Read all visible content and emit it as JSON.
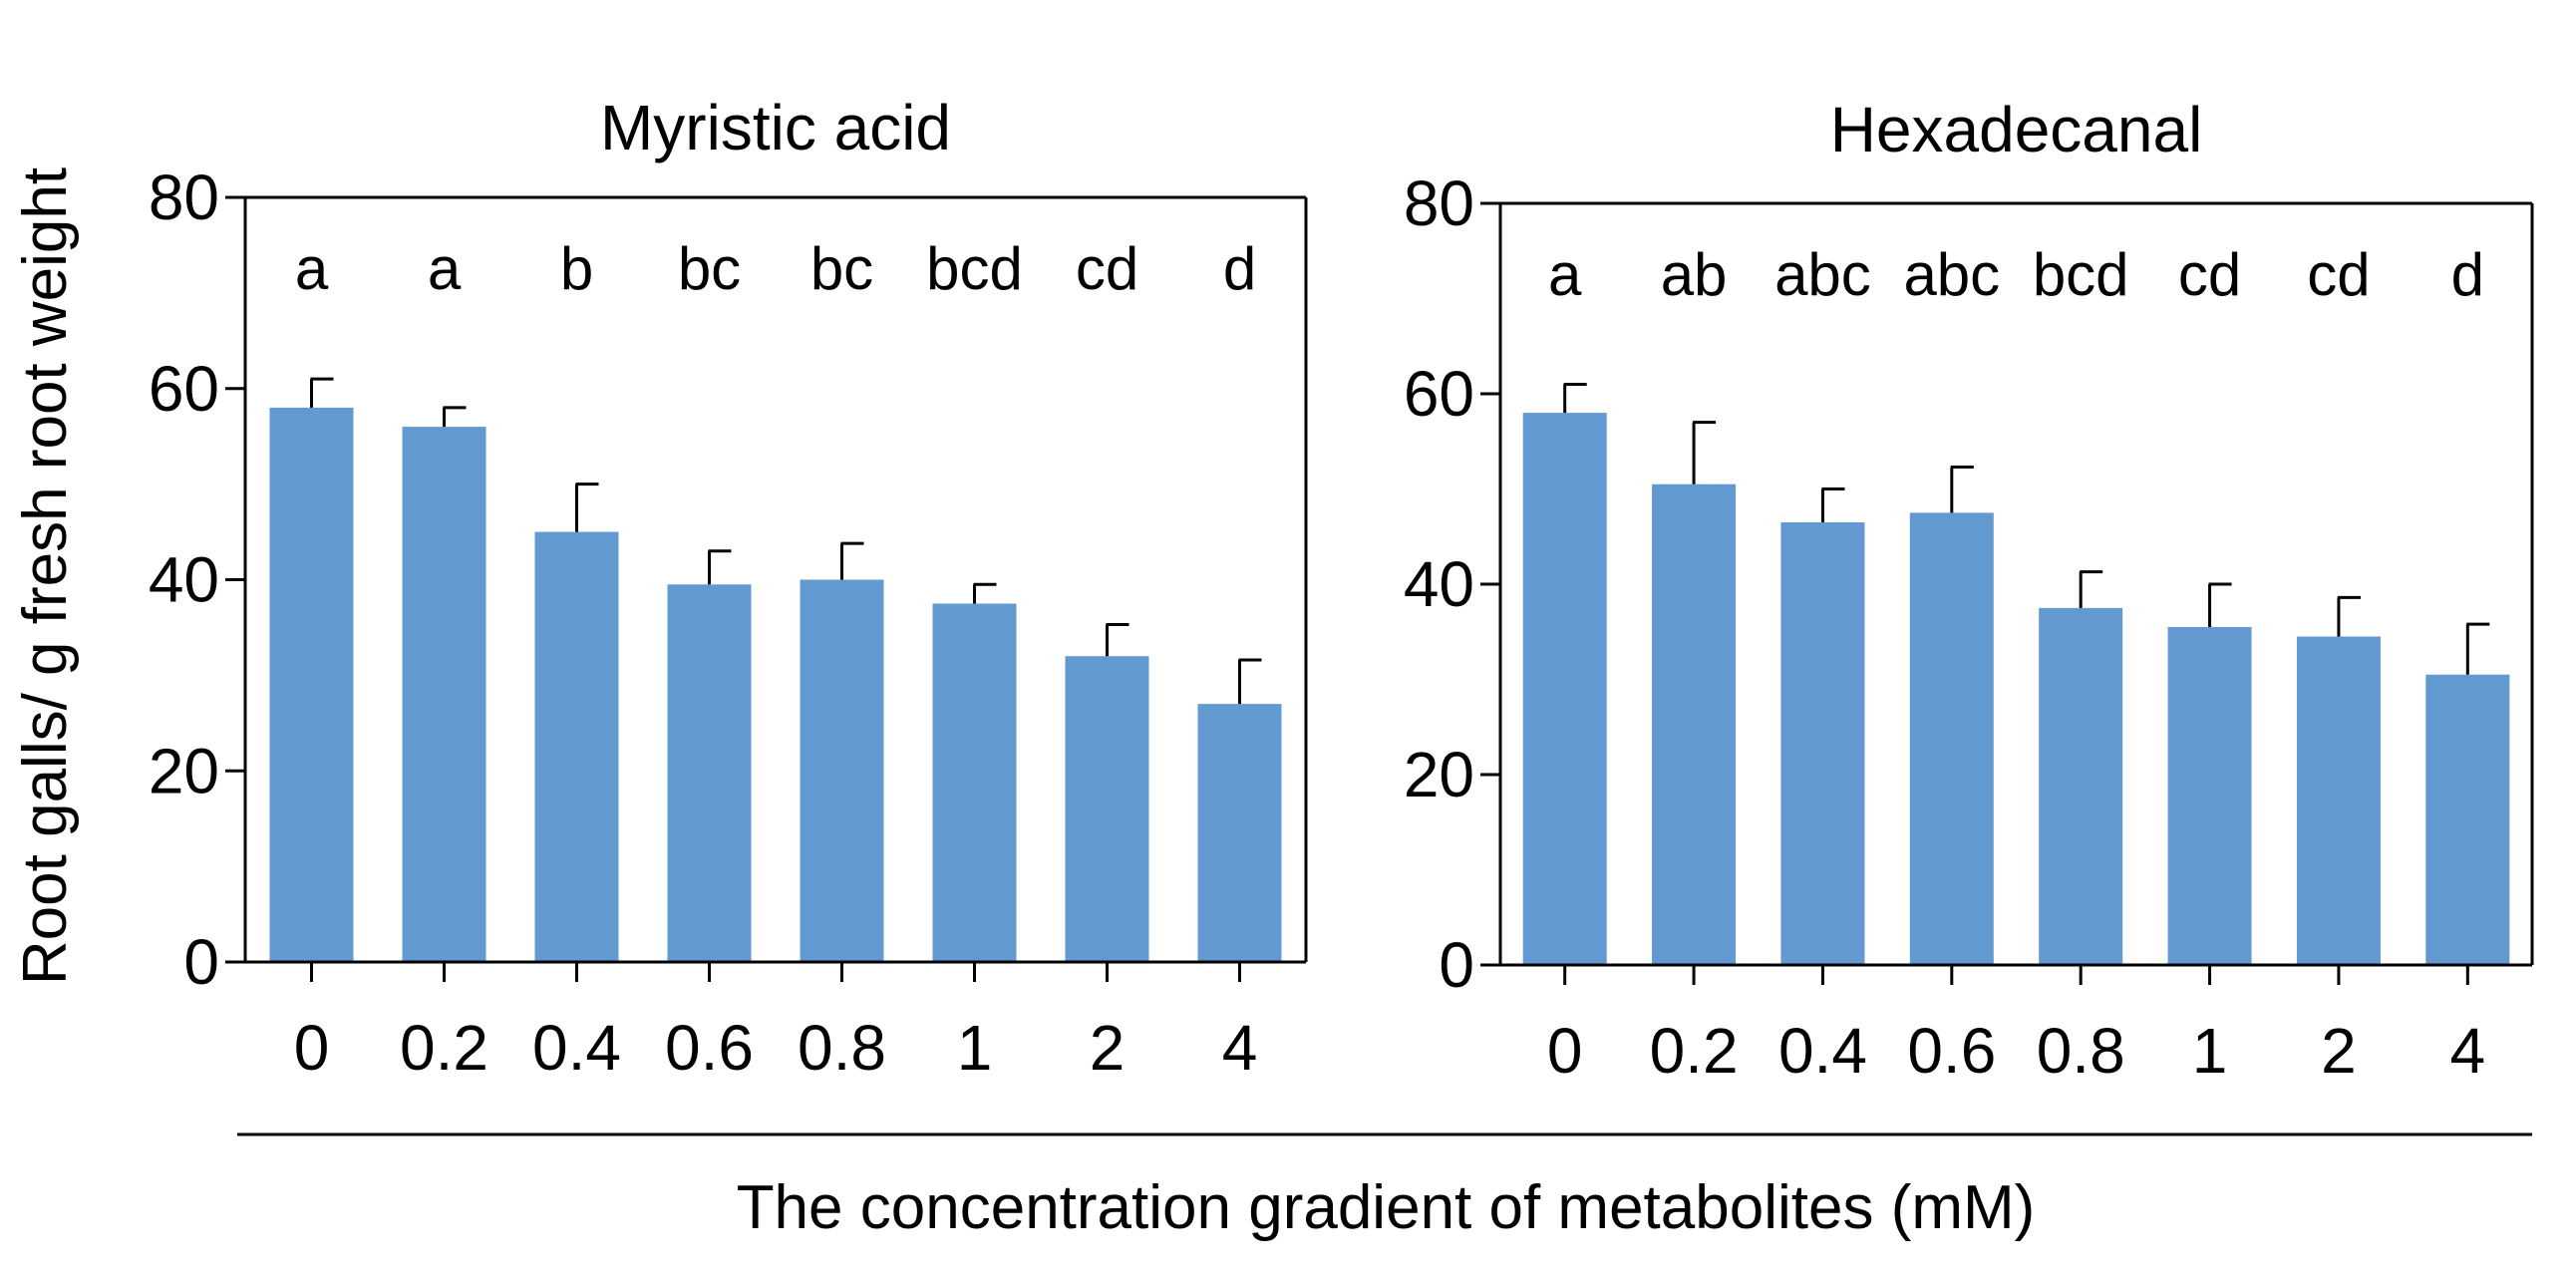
{
  "figure": {
    "ylabel": "Root galls/ g fresh root weight",
    "xlabel": "The concentration gradient of metabolites (mM)"
  },
  "colors": {
    "bar": "#6299D0",
    "axis": "#000000"
  },
  "chart_data": [
    {
      "type": "bar",
      "title": "Myristic acid",
      "ylabel": "Root galls/ g fresh root weight",
      "xlabel": "The concentration gradient of metabolites (mM)",
      "ylim": [
        0,
        80
      ],
      "yticks": [
        0,
        20,
        40,
        60,
        80
      ],
      "categories": [
        "0",
        "0.2",
        "0.4",
        "0.6",
        "0.8",
        "1",
        "2",
        "4"
      ],
      "values": [
        58,
        56,
        45,
        39.5,
        40,
        37.5,
        32,
        27
      ],
      "errors": [
        3,
        2,
        5,
        3.5,
        3.8,
        2,
        3.3,
        4.6
      ],
      "significance_letters": [
        "a",
        "a",
        "b",
        "bc",
        "bc",
        "bcd",
        "cd",
        "d"
      ],
      "grid": false,
      "legend": "none"
    },
    {
      "type": "bar",
      "title": "Hexadecanal",
      "ylabel": "Root galls/ g fresh root weight",
      "xlabel": "The concentration gradient of metabolites (mM)",
      "ylim": [
        0,
        80
      ],
      "yticks": [
        0,
        20,
        40,
        60,
        80
      ],
      "categories": [
        "0",
        "0.2",
        "0.4",
        "0.6",
        "0.8",
        "1",
        "2",
        "4"
      ],
      "values": [
        58,
        50.5,
        46.5,
        47.5,
        37.5,
        35.5,
        34.5,
        30.5
      ],
      "errors": [
        3,
        6.5,
        3.5,
        4.8,
        3.8,
        4.5,
        4.1,
        5.3
      ],
      "significance_letters": [
        "a",
        "ab",
        "abc",
        "abc",
        "bcd",
        "cd",
        "cd",
        "d"
      ],
      "grid": false,
      "legend": "none"
    }
  ]
}
